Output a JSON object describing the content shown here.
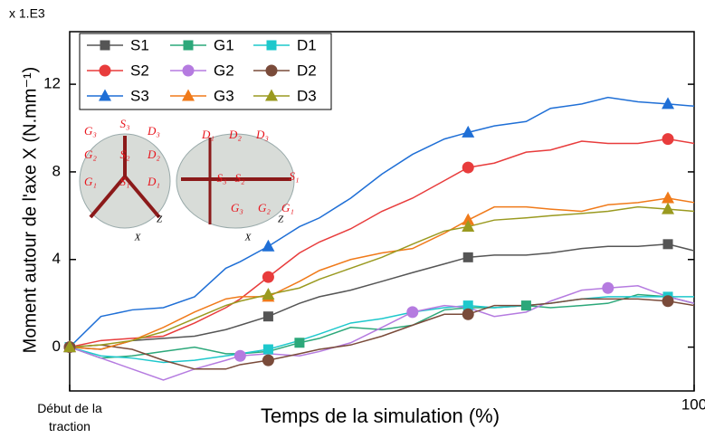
{
  "chart_data": {
    "type": "line",
    "y_multiplier": "x 1.E3",
    "xlabel": "Temps de la simulation (%)",
    "ylabel": "Moment autour de l'axe X (N.mm⁻¹)",
    "xlim": [
      0,
      100
    ],
    "ylim": [
      -2,
      14.4
    ],
    "xticks": [
      {
        "value": 0,
        "label": "Début de la traction"
      },
      100
    ],
    "yticks": [
      0,
      4,
      8,
      12
    ],
    "grid": false,
    "legend": "top-left",
    "annotations": [
      "S₃",
      "G₃",
      "D₃",
      "G₂",
      "S₂",
      "D₂",
      "G₁",
      "S₁",
      "D₁",
      "X",
      "Z"
    ],
    "x": [
      0,
      5,
      10,
      15,
      20,
      25,
      27.3,
      31.8,
      36.8,
      40,
      45,
      50,
      54.9,
      60,
      63.8,
      68,
      73.1,
      77,
      82,
      86.2,
      91,
      95.8,
      100
    ],
    "series": [
      {
        "name": "S1",
        "color": "#555555",
        "marker": "square",
        "values": [
          0,
          -0.1,
          0.3,
          0.4,
          0.5,
          0.8,
          1.0,
          1.4,
          2.0,
          2.3,
          2.6,
          3.0,
          3.4,
          3.8,
          4.1,
          4.2,
          4.2,
          4.3,
          4.5,
          4.6,
          4.6,
          4.7,
          4.4
        ]
      },
      {
        "name": "G1",
        "color": "#2ca87a",
        "marker": "square",
        "values": [
          0,
          -0.5,
          -0.4,
          -0.2,
          0.0,
          -0.3,
          -0.3,
          -0.2,
          0.2,
          0.4,
          0.9,
          0.8,
          1.0,
          1.7,
          1.8,
          1.8,
          1.9,
          1.8,
          1.9,
          2.0,
          2.4,
          2.3,
          2.0
        ]
      },
      {
        "name": "D1",
        "color": "#1ec8cc",
        "marker": "square",
        "values": [
          0,
          -0.4,
          -0.5,
          -0.7,
          -0.6,
          -0.4,
          -0.3,
          -0.1,
          0.3,
          0.6,
          1.1,
          1.3,
          1.6,
          1.8,
          1.9,
          1.8,
          1.9,
          2.0,
          2.2,
          2.3,
          2.3,
          2.3,
          2.3
        ]
      },
      {
        "name": "S2",
        "color": "#e83c3c",
        "marker": "circle",
        "values": [
          0,
          0.3,
          0.4,
          0.5,
          1.1,
          1.8,
          2.2,
          3.2,
          4.3,
          4.8,
          5.4,
          6.2,
          6.8,
          7.6,
          8.2,
          8.4,
          8.9,
          9.0,
          9.4,
          9.3,
          9.3,
          9.5,
          9.3
        ]
      },
      {
        "name": "G2",
        "color": "#b57be0",
        "marker": "circle",
        "values": [
          0,
          -0.5,
          -1.0,
          -1.5,
          -1.0,
          -0.6,
          -0.4,
          -0.3,
          -0.4,
          -0.2,
          0.2,
          0.9,
          1.6,
          1.9,
          1.8,
          1.4,
          1.6,
          2.1,
          2.6,
          2.7,
          2.8,
          2.3,
          2.0
        ]
      },
      {
        "name": "D2",
        "color": "#7a4b3a",
        "marker": "circle",
        "values": [
          0,
          0.1,
          -0.1,
          -0.6,
          -1.0,
          -1.0,
          -0.8,
          -0.6,
          -0.3,
          -0.1,
          0.1,
          0.5,
          1.0,
          1.5,
          1.5,
          1.9,
          1.9,
          2.0,
          2.2,
          2.2,
          2.2,
          2.1,
          1.9
        ]
      },
      {
        "name": "S3",
        "color": "#1f6fd6",
        "marker": "triangle",
        "values": [
          0,
          1.4,
          1.7,
          1.8,
          2.3,
          3.6,
          3.9,
          4.6,
          5.5,
          5.9,
          6.8,
          7.9,
          8.8,
          9.5,
          9.8,
          10.1,
          10.3,
          10.9,
          11.1,
          11.4,
          11.2,
          11.1,
          11.0
        ]
      },
      {
        "name": "G3",
        "color": "#f07a1a",
        "marker": "triangle",
        "values": [
          0,
          -0.1,
          0.3,
          0.9,
          1.6,
          2.2,
          2.3,
          2.3,
          3.0,
          3.5,
          4.0,
          4.3,
          4.5,
          5.2,
          5.8,
          6.4,
          6.4,
          6.3,
          6.2,
          6.5,
          6.6,
          6.8,
          6.6
        ]
      },
      {
        "name": "D3",
        "color": "#9a9a20",
        "marker": "triangle",
        "values": [
          0,
          0.1,
          0.3,
          0.7,
          1.3,
          1.9,
          2.1,
          2.4,
          2.7,
          3.1,
          3.6,
          4.1,
          4.7,
          5.3,
          5.5,
          5.8,
          5.9,
          6.0,
          6.1,
          6.2,
          6.4,
          6.3,
          6.2
        ]
      }
    ]
  }
}
